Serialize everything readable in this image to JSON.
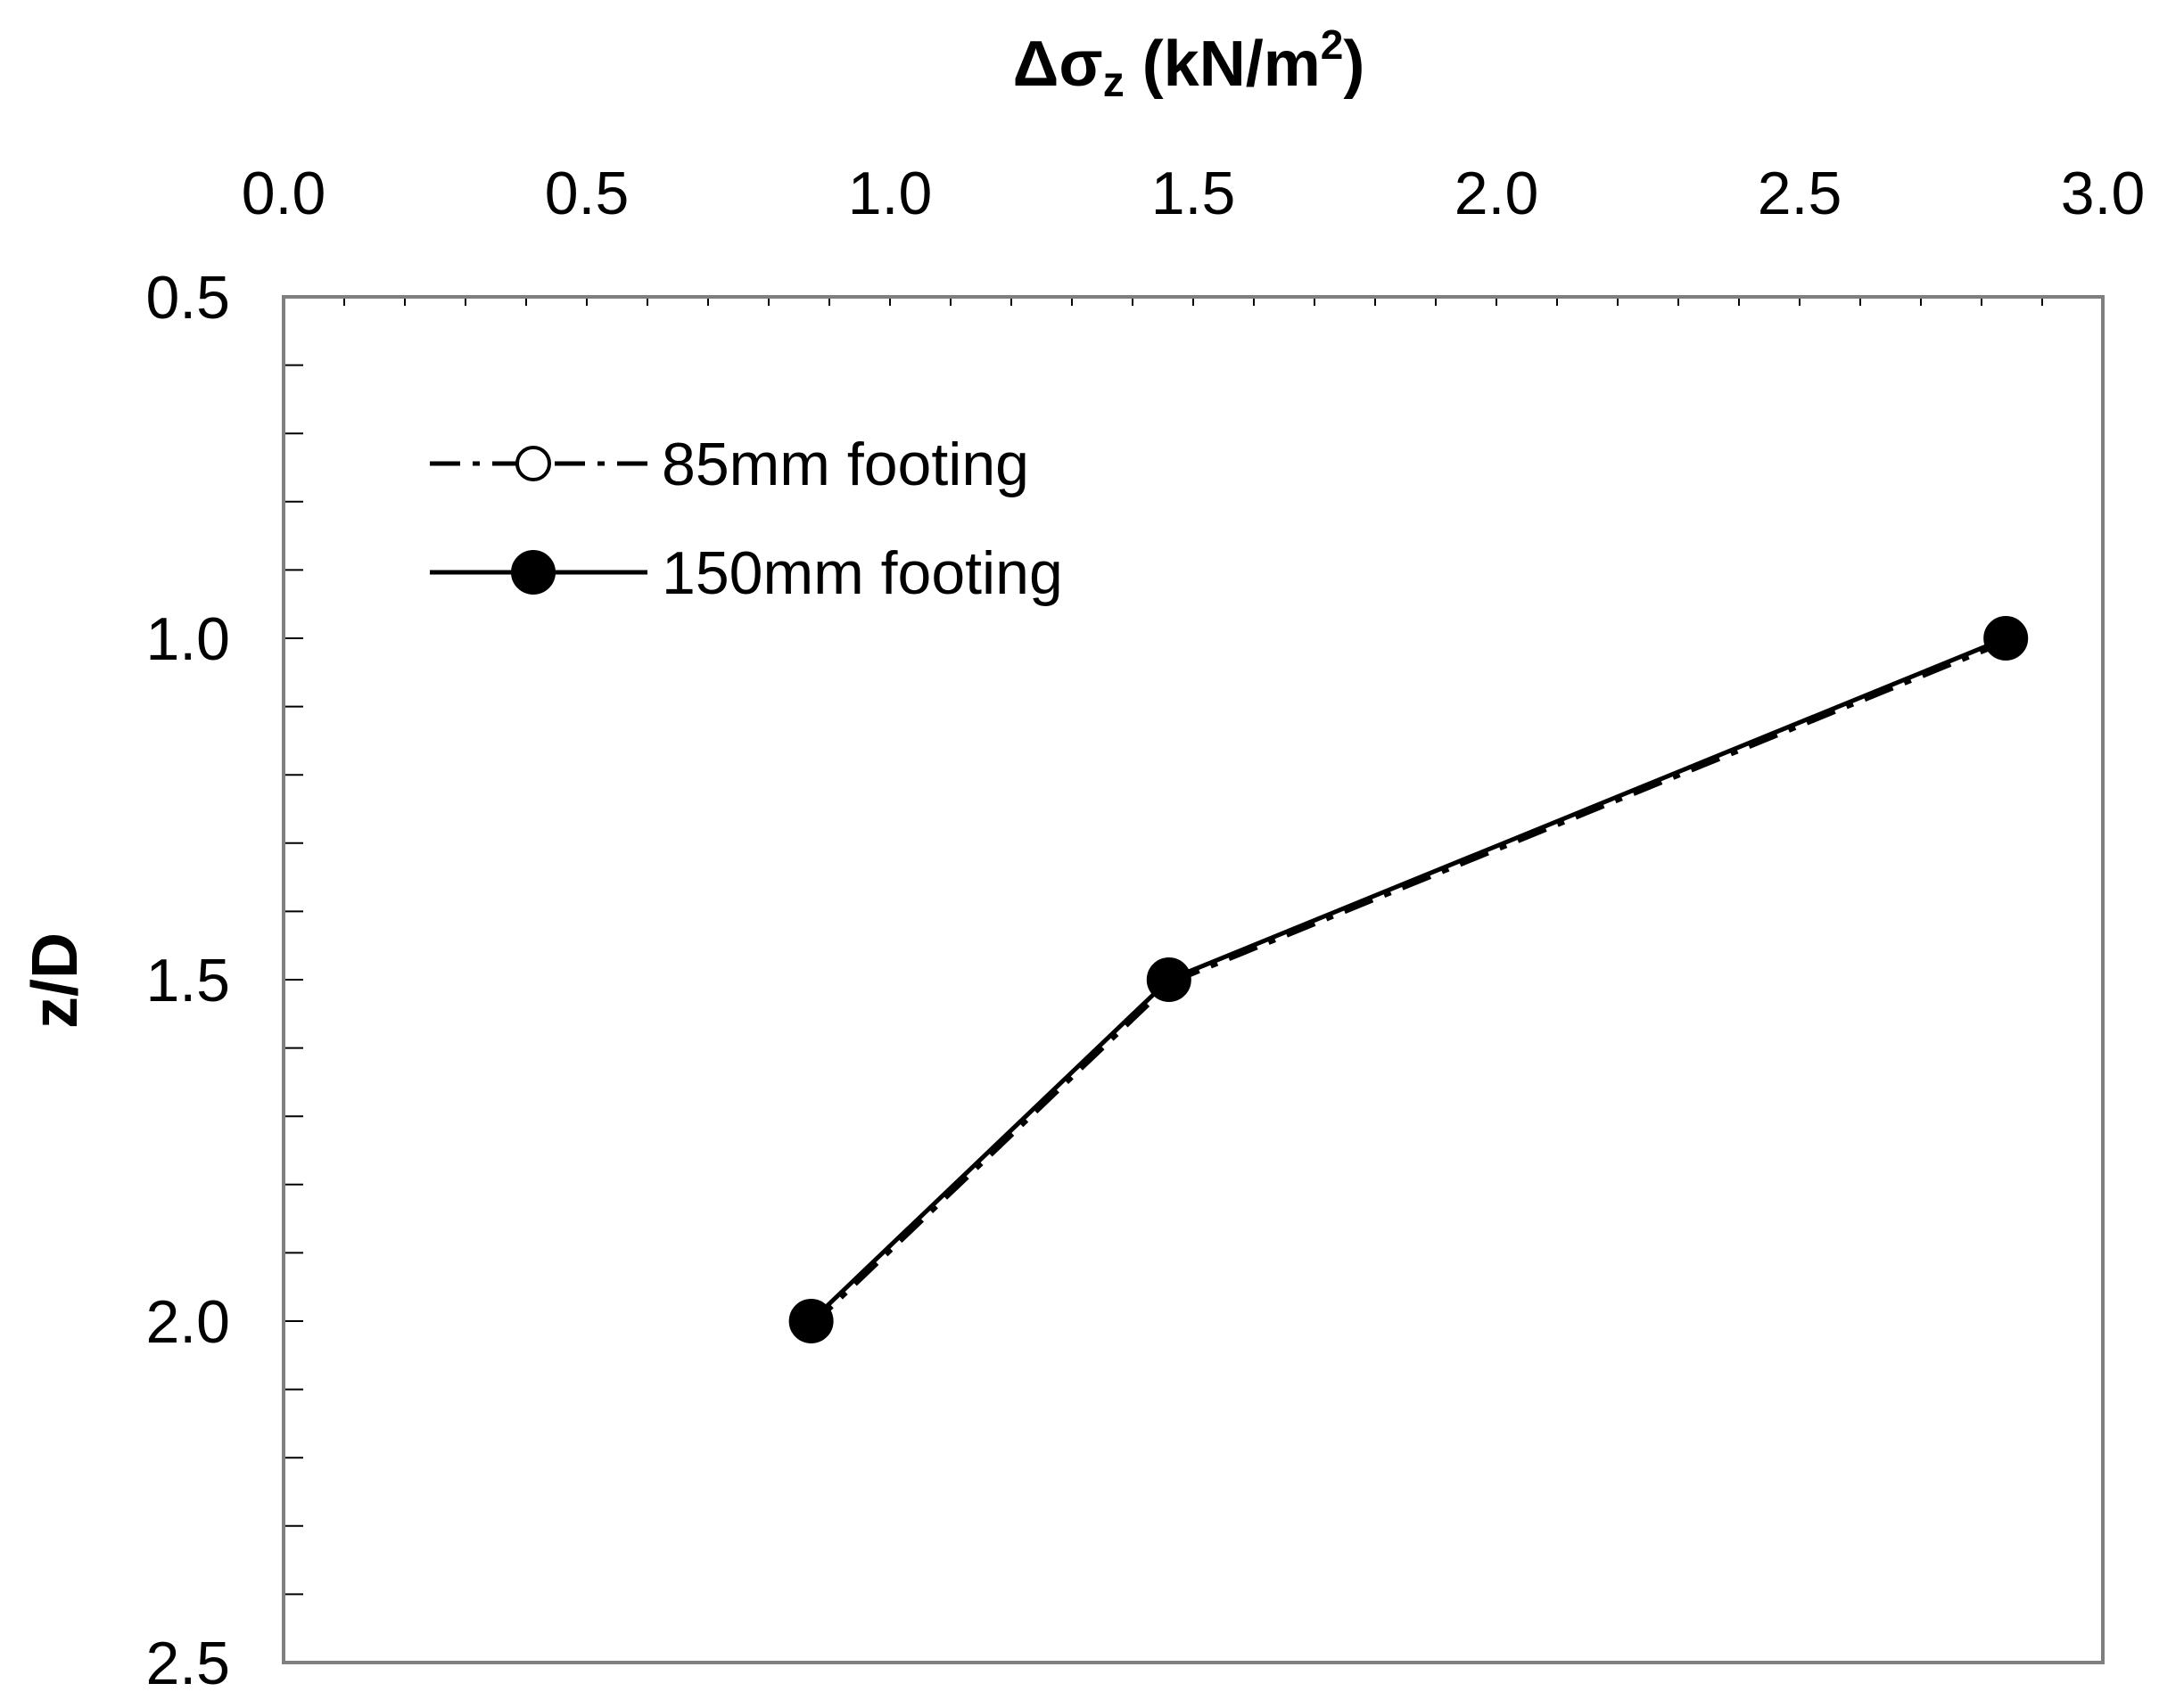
{
  "chart_data": {
    "type": "line",
    "xlabel": {
      "prefix": "Δσ",
      "subscript": "z",
      "unit": " (kN/m",
      "superscript": "2",
      "close": ")"
    },
    "ylabel": "z/D",
    "x_axis_position": "top",
    "y_axis_inverted": true,
    "xlim": [
      0.0,
      3.0
    ],
    "ylim": [
      0.5,
      2.5
    ],
    "x_ticks": [
      "0.0",
      "0.5",
      "1.0",
      "1.5",
      "2.0",
      "2.5",
      "3.0"
    ],
    "y_ticks": [
      "0.5",
      "1.0",
      "1.5",
      "2.0",
      "2.5"
    ],
    "x_tick_values": [
      0.0,
      0.5,
      1.0,
      1.5,
      2.0,
      2.5,
      3.0
    ],
    "y_tick_values": [
      0.5,
      1.0,
      1.5,
      2.0,
      2.5
    ],
    "grid": false,
    "legend_position": "top-left",
    "series": [
      {
        "name": "85mm footing",
        "line_style": "dash-dot",
        "marker": "open-circle",
        "color": "#000000",
        "points": [
          {
            "x": 2.84,
            "y": 1.0
          },
          {
            "x": 1.46,
            "y": 1.5
          },
          {
            "x": 0.87,
            "y": 2.0
          }
        ]
      },
      {
        "name": "150mm footing",
        "line_style": "solid",
        "marker": "filled-circle",
        "color": "#000000",
        "points": [
          {
            "x": 2.84,
            "y": 1.0
          },
          {
            "x": 1.46,
            "y": 1.5
          },
          {
            "x": 0.87,
            "y": 2.0
          }
        ]
      }
    ]
  }
}
